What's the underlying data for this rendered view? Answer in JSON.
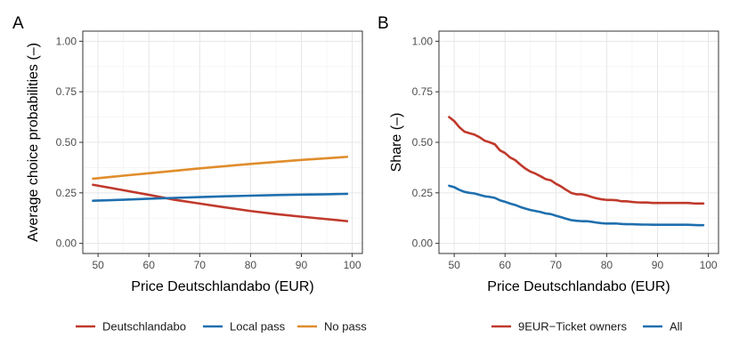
{
  "chart_data": [
    {
      "type": "line",
      "panel_label": "A",
      "xlabel": "Price Deutschlandabo (EUR)",
      "ylabel": "Average choice probabilities (–)",
      "xlim": [
        47,
        102
      ],
      "ylim": [
        -0.05,
        1.05
      ],
      "xticks": [
        50,
        60,
        70,
        80,
        90,
        100
      ],
      "yticks": [
        0.0,
        0.25,
        0.5,
        0.75,
        1.0
      ],
      "ytick_labels": [
        "0.00",
        "0.25",
        "0.50",
        "0.75",
        "1.00"
      ],
      "grid": true,
      "legend_position": "bottom",
      "x": [
        49,
        55,
        60,
        65,
        70,
        75,
        80,
        85,
        90,
        95,
        99
      ],
      "series": [
        {
          "name": "Deutschlandabo",
          "color": "#c0392b",
          "values": [
            0.29,
            0.263,
            0.24,
            0.216,
            0.197,
            0.178,
            0.16,
            0.145,
            0.132,
            0.12,
            0.11
          ]
        },
        {
          "name": "Local pass",
          "color": "#1f6fae",
          "values": [
            0.211,
            0.216,
            0.221,
            0.225,
            0.229,
            0.233,
            0.236,
            0.239,
            0.241,
            0.243,
            0.245
          ]
        },
        {
          "name": "No pass",
          "color": "#e08d2c",
          "values": [
            0.32,
            0.335,
            0.347,
            0.359,
            0.371,
            0.382,
            0.393,
            0.403,
            0.413,
            0.421,
            0.428
          ]
        }
      ]
    },
    {
      "type": "line",
      "panel_label": "B",
      "xlabel": "Price Deutschlandabo (EUR)",
      "ylabel": "Share (–)",
      "xlim": [
        47,
        102
      ],
      "ylim": [
        -0.05,
        1.05
      ],
      "xticks": [
        50,
        60,
        70,
        80,
        90,
        100
      ],
      "yticks": [
        0.0,
        0.25,
        0.5,
        0.75,
        1.0
      ],
      "ytick_labels": [
        "0.00",
        "0.25",
        "0.50",
        "0.75",
        "1.00"
      ],
      "grid": true,
      "legend_position": "bottom",
      "x": [
        49,
        50,
        51,
        52,
        53,
        54,
        55,
        56,
        57,
        58,
        59,
        60,
        61,
        62,
        63,
        64,
        65,
        66,
        67,
        68,
        69,
        70,
        71,
        72,
        73,
        74,
        75,
        76,
        77,
        78,
        79,
        80,
        81,
        82,
        83,
        84,
        85,
        86,
        87,
        88,
        89,
        90,
        91,
        92,
        93,
        94,
        95,
        96,
        97,
        98,
        99
      ],
      "series": [
        {
          "name": "9EUR−Ticket owners",
          "color": "#c0392b",
          "values": [
            0.625,
            0.605,
            0.575,
            0.553,
            0.545,
            0.538,
            0.525,
            0.508,
            0.5,
            0.49,
            0.46,
            0.447,
            0.425,
            0.412,
            0.39,
            0.37,
            0.355,
            0.345,
            0.332,
            0.318,
            0.312,
            0.295,
            0.282,
            0.265,
            0.25,
            0.243,
            0.243,
            0.238,
            0.23,
            0.223,
            0.218,
            0.215,
            0.215,
            0.213,
            0.208,
            0.208,
            0.205,
            0.203,
            0.202,
            0.202,
            0.2,
            0.2,
            0.2,
            0.2,
            0.2,
            0.2,
            0.2,
            0.2,
            0.198,
            0.197,
            0.197
          ]
        },
        {
          "name": "All",
          "color": "#1f6fae",
          "values": [
            0.285,
            0.278,
            0.265,
            0.255,
            0.25,
            0.247,
            0.24,
            0.233,
            0.23,
            0.225,
            0.213,
            0.206,
            0.197,
            0.19,
            0.18,
            0.172,
            0.165,
            0.16,
            0.155,
            0.148,
            0.145,
            0.137,
            0.13,
            0.122,
            0.115,
            0.112,
            0.11,
            0.11,
            0.107,
            0.103,
            0.1,
            0.098,
            0.098,
            0.098,
            0.096,
            0.095,
            0.095,
            0.094,
            0.093,
            0.093,
            0.092,
            0.092,
            0.092,
            0.092,
            0.092,
            0.092,
            0.092,
            0.092,
            0.091,
            0.09,
            0.09
          ]
        }
      ]
    }
  ]
}
